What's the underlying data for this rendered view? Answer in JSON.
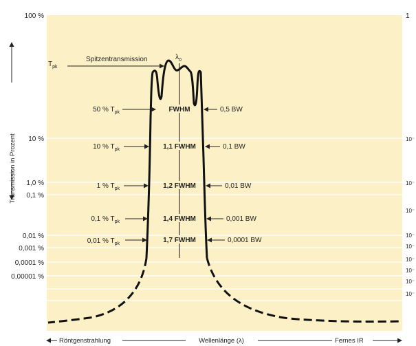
{
  "colors": {
    "panel": "#fcf0c6",
    "grid": "#ffffff",
    "curve": "#111111"
  },
  "y_axis": {
    "label": "Transmission in Prozent",
    "left_ticks": [
      "100 %",
      "10 %",
      "1,0 %",
      "0,1 %",
      "0,01 %",
      "0,001 %",
      "0,0001 %",
      "0,00001 %"
    ],
    "right_ticks": [
      "1",
      "10⁻",
      "10⁻",
      "10⁻",
      "10⁻",
      "10⁻",
      "10⁻",
      "10⁻",
      "10⁻",
      "10⁻"
    ]
  },
  "x_axis": {
    "left": "Röntgenstrahlung",
    "center": "Wellenlänge (λ)",
    "right": "Fernes IR"
  },
  "annotations": {
    "tpk_main": "T",
    "tpk_sub": "pk",
    "peak": "Spitzentransmission",
    "lambda": "λ",
    "lambda_sub": "0",
    "rows": [
      {
        "pct": "50 % T",
        "sub": "pk",
        "fw": "FWHM",
        "bw": "0,5 BW"
      },
      {
        "pct": "10 % T",
        "sub": "pk",
        "fw": "1,1 FWHM",
        "bw": "0,1 BW"
      },
      {
        "pct": "1 % T",
        "sub": "pk",
        "fw": "1,2 FWHM",
        "bw": "0,01 BW"
      },
      {
        "pct": "0,1 % T",
        "sub": "pk",
        "fw": "1,4 FWHM",
        "bw": "0,001 BW"
      },
      {
        "pct": "0,01 % T",
        "sub": "pk",
        "fw": "1,7 FWHM",
        "bw": "0,0001 BW"
      }
    ]
  }
}
